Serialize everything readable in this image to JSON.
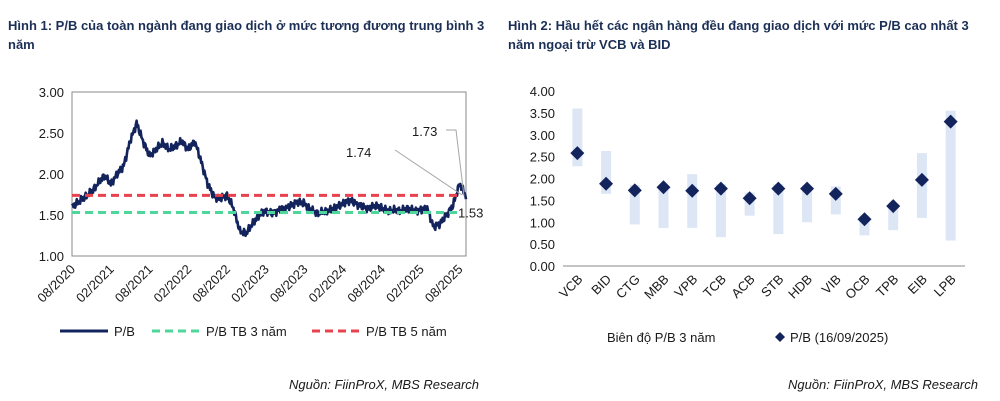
{
  "figure1": {
    "title": "Hình 1: P/B của toàn ngành đang giao dịch ở mức tương đương trung bình 3 năm",
    "source": "Nguồn: FiinProX, MBS Research"
  },
  "figure2": {
    "title": "Hình 2: Hầu hết các ngân hàng đều đang giao dịch với mức P/B cao nhất 3 năm ngoại trừ VCB và BID",
    "source": "Nguồn: FiinProX, MBS Research"
  },
  "chart_data": [
    {
      "type": "line",
      "x_tick_labels": [
        "08/2020",
        "02/2021",
        "08/2021",
        "02/2022",
        "08/2022",
        "02/2023",
        "08/2023",
        "02/2024",
        "08/2024",
        "02/2025",
        "08/2025"
      ],
      "xlim": [
        "2020-08",
        "2025-09"
      ],
      "ylim": [
        1.0,
        3.0
      ],
      "y_ticks": [
        "1.00",
        "1.50",
        "2.00",
        "2.50",
        "3.00"
      ],
      "grid": false,
      "legend_position": "bottom",
      "series": [
        {
          "name": "P/B",
          "color": "#13245c",
          "x": [
            "2020-08",
            "2020-09",
            "2020-10",
            "2020-11",
            "2020-12",
            "2021-01",
            "2021-02",
            "2021-03",
            "2021-04",
            "2021-05",
            "2021-06",
            "2021-07",
            "2021-08",
            "2021-09",
            "2021-10",
            "2021-11",
            "2021-12",
            "2022-01",
            "2022-02",
            "2022-03",
            "2022-04",
            "2022-05",
            "2022-06",
            "2022-07",
            "2022-08",
            "2022-09",
            "2022-10",
            "2022-11",
            "2022-12",
            "2023-01",
            "2023-02",
            "2023-03",
            "2023-04",
            "2023-05",
            "2023-06",
            "2023-07",
            "2023-08",
            "2023-09",
            "2023-10",
            "2023-11",
            "2023-12",
            "2024-01",
            "2024-02",
            "2024-03",
            "2024-04",
            "2024-05",
            "2024-06",
            "2024-07",
            "2024-08",
            "2024-09",
            "2024-10",
            "2024-11",
            "2024-12",
            "2025-01",
            "2025-02",
            "2025-03",
            "2025-04",
            "2025-05",
            "2025-06",
            "2025-07",
            "2025-08",
            "2025-09"
          ],
          "values": [
            1.6,
            1.66,
            1.72,
            1.78,
            1.88,
            1.98,
            1.88,
            2.0,
            2.1,
            2.4,
            2.62,
            2.4,
            2.22,
            2.3,
            2.38,
            2.3,
            2.34,
            2.4,
            2.3,
            2.4,
            2.15,
            1.88,
            1.72,
            1.7,
            1.74,
            1.58,
            1.3,
            1.28,
            1.4,
            1.5,
            1.55,
            1.52,
            1.56,
            1.58,
            1.62,
            1.66,
            1.64,
            1.56,
            1.52,
            1.54,
            1.56,
            1.6,
            1.64,
            1.68,
            1.64,
            1.6,
            1.58,
            1.62,
            1.58,
            1.55,
            1.56,
            1.55,
            1.58,
            1.55,
            1.56,
            1.58,
            1.35,
            1.4,
            1.5,
            1.62,
            1.88,
            1.73
          ]
        },
        {
          "name": "P/B TB 3 năm",
          "color": "#4fd69a",
          "constant": 1.53
        },
        {
          "name": "P/B TB 5 năm",
          "color": "#e8424e",
          "constant": 1.74
        }
      ],
      "annotations": [
        {
          "text": "1.74",
          "value": 1.74
        },
        {
          "text": "1.73",
          "value": 1.73
        },
        {
          "text": "1.53",
          "value": 1.53
        }
      ]
    },
    {
      "type": "range_with_points",
      "categories": [
        "VCB",
        "BID",
        "CTG",
        "MBB",
        "VPB",
        "TCB",
        "ACB",
        "STB",
        "HDB",
        "VIB",
        "OCB",
        "TPB",
        "EIB",
        "LPB"
      ],
      "ylim": [
        0.0,
        4.0
      ],
      "y_ticks": [
        "0.00",
        "0.50",
        "1.00",
        "1.50",
        "2.00",
        "2.50",
        "3.00",
        "3.50",
        "4.00"
      ],
      "grid": false,
      "legend_position": "bottom",
      "series": [
        {
          "name": "Biên độ P/B 3 năm",
          "color": "#dde6f5",
          "low": [
            2.28,
            1.65,
            0.95,
            0.87,
            0.87,
            0.66,
            1.15,
            0.73,
            1.0,
            1.18,
            0.7,
            0.82,
            1.1,
            0.58
          ],
          "high": [
            3.6,
            2.63,
            1.85,
            1.78,
            2.1,
            1.87,
            1.68,
            1.87,
            1.83,
            1.82,
            1.15,
            1.42,
            2.58,
            3.55
          ]
        },
        {
          "name": "P/B (16/09/2025)",
          "color": "#13245c",
          "values": [
            2.58,
            1.88,
            1.73,
            1.8,
            1.72,
            1.77,
            1.55,
            1.77,
            1.77,
            1.65,
            1.07,
            1.37,
            1.97,
            3.3
          ]
        }
      ]
    }
  ]
}
